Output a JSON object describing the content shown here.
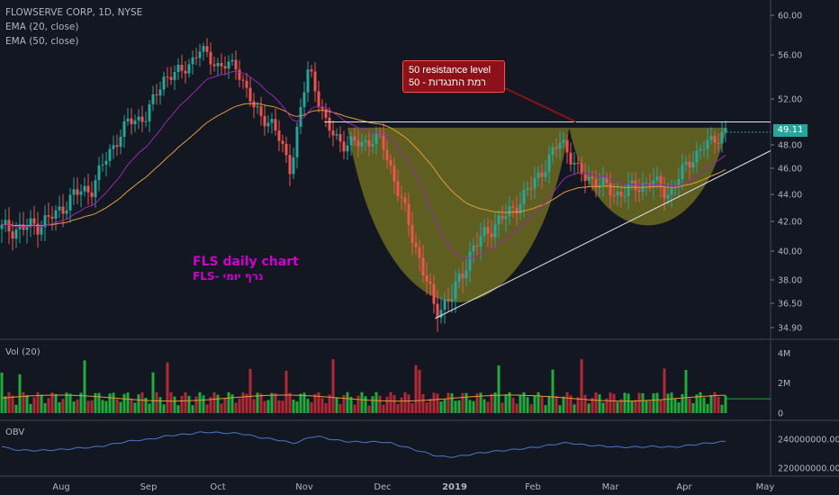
{
  "header": {
    "symbol_line": "FLOWSERVE CORP, 1D, NYSE",
    "ema20_label": "EMA (20, close)",
    "ema50_label": "EMA (50, close)"
  },
  "volume_label": "Vol (20)",
  "obv_label": "OBV",
  "annotation": {
    "title": "FLS daily chart",
    "subtitle": "FLS- גרף יומי"
  },
  "callout": {
    "line1": "50 resistance level",
    "line2": "50 - רמת התנגדות"
  },
  "last_price_label": "49.11",
  "colors": {
    "background": "#131722",
    "up": "#26a69a",
    "down": "#ef5350",
    "vol_up": "#22ab3a",
    "vol_down": "#b22833",
    "ema20": "#9c27b0",
    "ema50": "#e39b3b",
    "cup_fill": "#6b6b1f",
    "obv_line": "#4a78c8",
    "annotation": "#d000d0",
    "callout_bg": "#8c1118"
  },
  "chart_data": [
    {
      "type": "line",
      "title": "FLOWSERVE CORP, 1D, NYSE",
      "x_axis": {
        "ticks": [
          "Aug",
          "Sep",
          "Oct",
          "Nov",
          "Dec",
          "2019",
          "Feb",
          "Mar",
          "Apr",
          "May"
        ]
      },
      "y_axis": {
        "ticks": [
          34.9,
          36.5,
          38.0,
          40.0,
          42.0,
          44.0,
          46.0,
          48.0,
          52.0,
          56.0,
          60.0
        ],
        "ylim": [
          34.5,
          61.5
        ]
      },
      "series": [
        {
          "name": "FLOWSERVE CORP",
          "approximate_close": [
            [
              "2018-07-16",
              41.5
            ],
            [
              "2018-07-23",
              41.8
            ],
            [
              "2018-07-30",
              42.5
            ],
            [
              "2018-08-06",
              44.0
            ],
            [
              "2018-08-13",
              44.5
            ],
            [
              "2018-08-20",
              47.5
            ],
            [
              "2018-08-27",
              50.0
            ],
            [
              "2018-09-03",
              50.5
            ],
            [
              "2018-09-10",
              54.0
            ],
            [
              "2018-09-17",
              54.5
            ],
            [
              "2018-09-24",
              56.5
            ],
            [
              "2018-10-01",
              55.0
            ],
            [
              "2018-10-08",
              55.0
            ],
            [
              "2018-10-15",
              51.0
            ],
            [
              "2018-10-22",
              49.8
            ],
            [
              "2018-10-29",
              46.0
            ],
            [
              "2018-11-05",
              55.0
            ],
            [
              "2018-11-12",
              49.5
            ],
            [
              "2018-11-19",
              48.0
            ],
            [
              "2018-12-03",
              48.5
            ],
            [
              "2018-12-10",
              44.0
            ],
            [
              "2018-12-17",
              40.0
            ],
            [
              "2018-12-24",
              36.0
            ],
            [
              "2018-12-31",
              37.0
            ],
            [
              "2019-01-07",
              40.0
            ],
            [
              "2019-01-14",
              41.5
            ],
            [
              "2019-01-21",
              42.5
            ],
            [
              "2019-01-28",
              44.0
            ],
            [
              "2019-02-04",
              46.0
            ],
            [
              "2019-02-11",
              48.5
            ],
            [
              "2019-02-18",
              45.5
            ],
            [
              "2019-02-25",
              45.0
            ],
            [
              "2019-03-04",
              44.0
            ],
            [
              "2019-03-11",
              44.5
            ],
            [
              "2019-03-18",
              45.0
            ],
            [
              "2019-03-25",
              44.0
            ],
            [
              "2019-04-01",
              46.5
            ],
            [
              "2019-04-08",
              48.0
            ],
            [
              "2019-04-15",
              49.11
            ]
          ]
        },
        {
          "name": "EMA (20, close)"
        },
        {
          "name": "EMA (50, close)"
        }
      ],
      "annotations": [
        {
          "type": "horizontal_line",
          "value": 50.0,
          "text": "50 resistance level"
        },
        {
          "type": "trendline",
          "from": [
            "2018-12-24",
            35.5
          ],
          "to": [
            "2019-05-01",
            47.5
          ]
        },
        {
          "type": "cup_shape",
          "from": [
            "2018-11-20",
            49.5
          ],
          "to": [
            "2019-02-14",
            49.5
          ],
          "bottom": 35.8
        },
        {
          "type": "cup_shape",
          "from": [
            "2019-02-14",
            49.5
          ],
          "to": [
            "2019-04-16",
            49.5
          ],
          "bottom": 41.3
        }
      ],
      "last_value": 49.11
    },
    {
      "type": "bar",
      "title": "Vol (20)",
      "y_axis": {
        "ticks": [
          "0",
          "2M",
          "4M"
        ],
        "ylim": [
          0,
          4.5
        ]
      },
      "unit": "millions"
    },
    {
      "type": "line",
      "title": "OBV",
      "y_axis": {
        "ticks": [
          "220000000.000",
          "240000000.000"
        ]
      }
    }
  ]
}
